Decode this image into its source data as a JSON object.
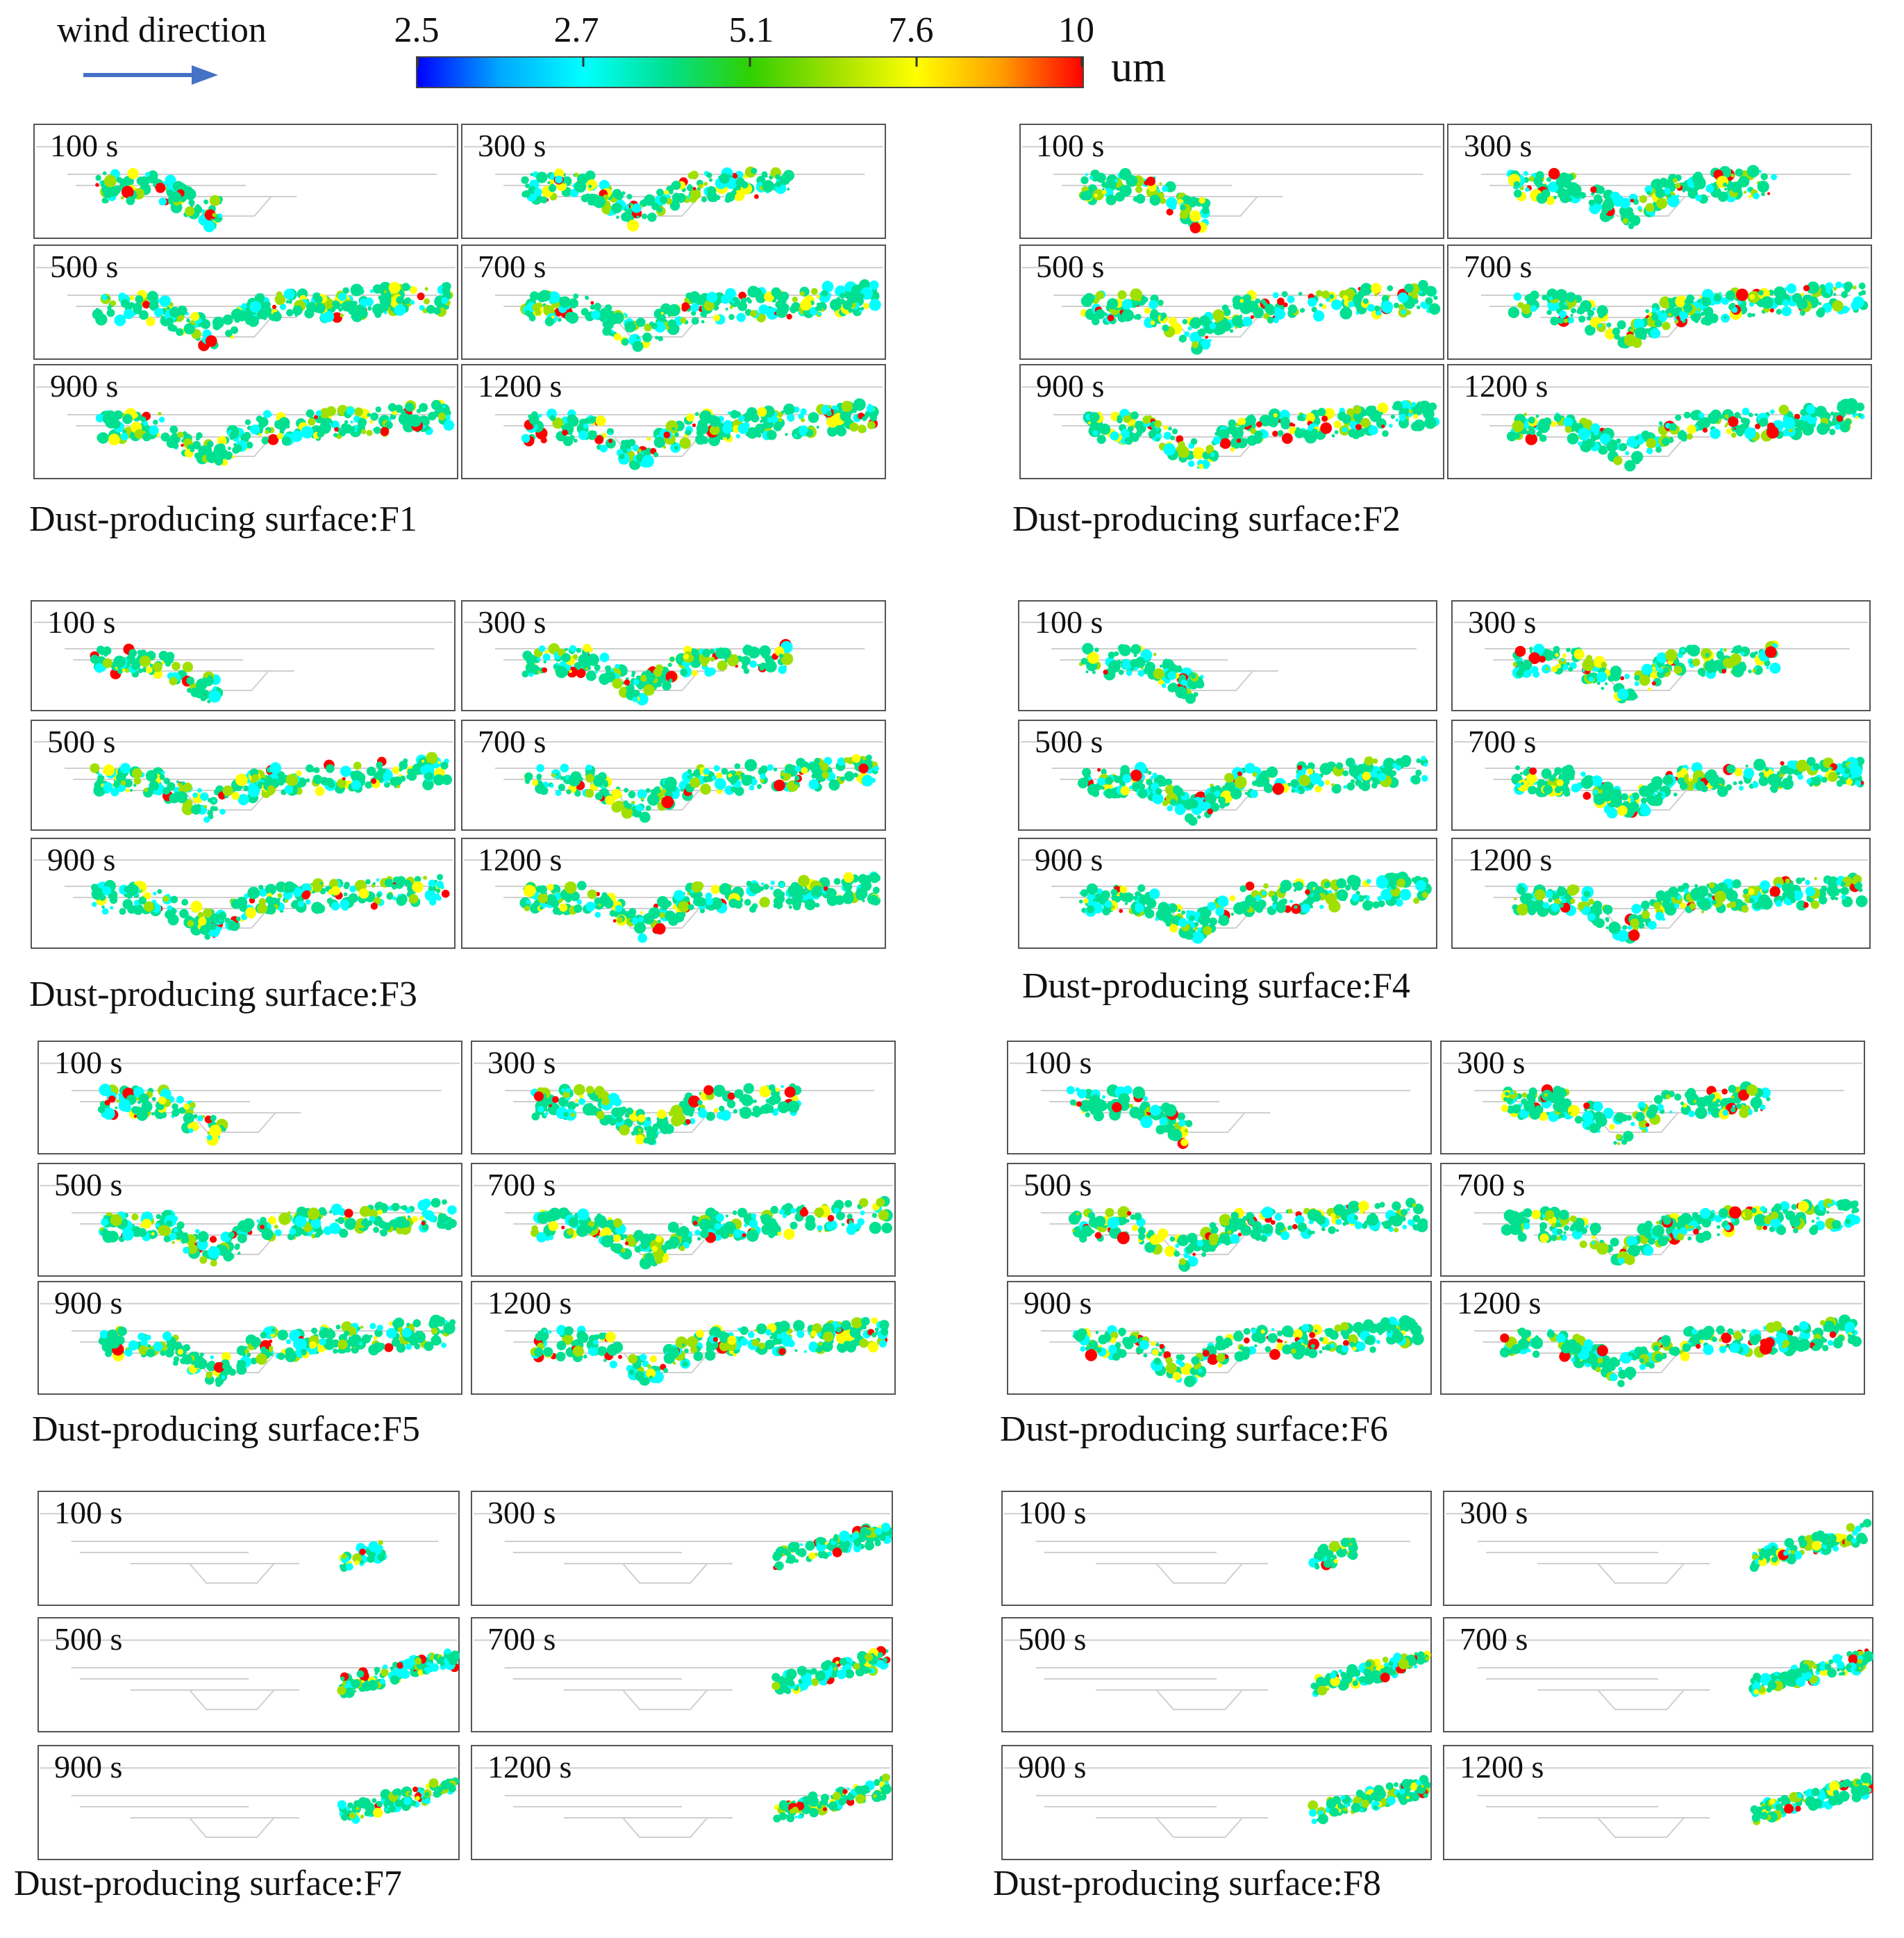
{
  "legend": {
    "wind_label": "wind direction",
    "colorbar_ticks": [
      "2.5",
      "2.7",
      "5.1",
      "7.6",
      "10"
    ],
    "colorbar_unit": "um",
    "colormap": [
      "#0000ff",
      "#00a8ff",
      "#00ffff",
      "#00e090",
      "#30d000",
      "#a0e000",
      "#ffff00",
      "#ffa000",
      "#ff0000"
    ]
  },
  "panels": [
    {
      "id": "F1",
      "label": "Dust-producing surface:F1",
      "times": [
        "100 s",
        "300 s",
        "500 s",
        "700 s",
        "900 s",
        "1200 s"
      ]
    },
    {
      "id": "F2",
      "label": "Dust-producing surface:F2",
      "times": [
        "100 s",
        "300 s",
        "500 s",
        "700 s",
        "900 s",
        "1200 s"
      ]
    },
    {
      "id": "F3",
      "label": "Dust-producing surface:F3",
      "times": [
        "100 s",
        "300 s",
        "500 s",
        "700 s",
        "900 s",
        "1200 s"
      ]
    },
    {
      "id": "F4",
      "label": "Dust-producing surface:F4",
      "times": [
        "100 s",
        "300 s",
        "500 s",
        "700 s",
        "900 s",
        "1200 s"
      ]
    },
    {
      "id": "F5",
      "label": "Dust-producing surface:F5",
      "times": [
        "100 s",
        "300 s",
        "500 s",
        "700 s",
        "900 s",
        "1200 s"
      ]
    },
    {
      "id": "F6",
      "label": "Dust-producing surface:F6",
      "times": [
        "100 s",
        "300 s",
        "500 s",
        "700 s",
        "900 s",
        "1200 s"
      ]
    },
    {
      "id": "F7",
      "label": "Dust-producing surface:F7",
      "times": [
        "100 s",
        "300 s",
        "500 s",
        "700 s",
        "900 s",
        "1200 s"
      ]
    },
    {
      "id": "F8",
      "label": "Dust-producing surface:F8",
      "times": [
        "100 s",
        "300 s",
        "500 s",
        "700 s",
        "900 s",
        "1200 s"
      ]
    }
  ]
}
